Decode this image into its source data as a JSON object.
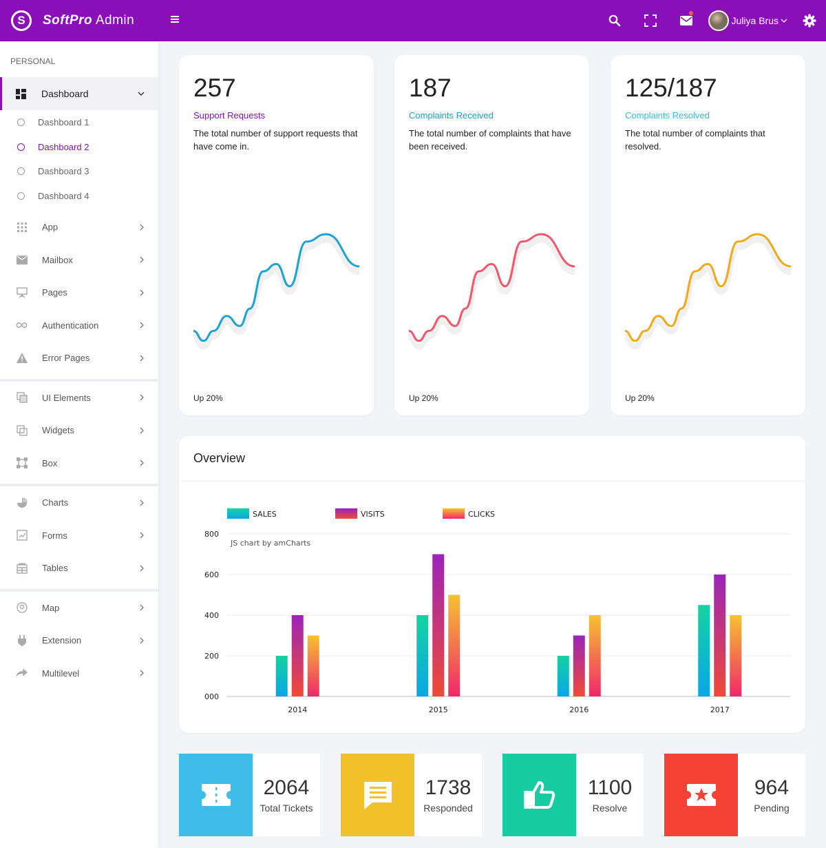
{
  "header": {
    "logo_letter": "S",
    "brand_bold": "SoftPro",
    "brand_rest": "Admin",
    "user_name": "Juliya Brus"
  },
  "sidebar": {
    "section_label": "PERSONAL",
    "active_item": "Dashboard",
    "sub_items": [
      "Dashboard 1",
      "Dashboard 2",
      "Dashboard 3",
      "Dashboard 4"
    ],
    "active_sub": "Dashboard 2",
    "group1": [
      "App",
      "Mailbox",
      "Pages",
      "Authentication",
      "Error Pages"
    ],
    "group2": [
      "UI Elements",
      "Widgets",
      "Box"
    ],
    "group3": [
      "Charts",
      "Forms",
      "Tables"
    ],
    "group4": [
      "Map",
      "Extension",
      "Multilevel"
    ]
  },
  "stats": [
    {
      "value": "257",
      "label": "Support Requests",
      "desc": "The total number of support requests that have come in.",
      "foot": "Up 20%",
      "color": "#1aa3d4",
      "label_color": "#8a0fb8"
    },
    {
      "value": "187",
      "label": "Complaints Received",
      "desc": "The total number of complaints that have been received.",
      "foot": "Up 20%",
      "color": "#f4556a",
      "label_color": "#17a2c7"
    },
    {
      "value": "125/187",
      "label": "Complaints Resolved",
      "desc": "The total number of complaints that resolved.",
      "foot": "Up 20%",
      "color": "#f5a815",
      "label_color": "#2ec2d6"
    }
  ],
  "overview": {
    "title": "Overview",
    "credit": "JS chart by amCharts"
  },
  "chart_data": {
    "type": "bar",
    "categories": [
      "2014",
      "2015",
      "2016",
      "2017"
    ],
    "series": [
      {
        "name": "SALES",
        "values": [
          200,
          400,
          200,
          450
        ],
        "color_top": "#14d2a0",
        "color_bottom": "#0aa6e8"
      },
      {
        "name": "VISITS",
        "values": [
          400,
          700,
          300,
          600
        ],
        "color_top": "#9b24b8",
        "color_bottom": "#f04a36"
      },
      {
        "name": "CLICKS",
        "values": [
          300,
          500,
          400,
          400
        ],
        "color_top": "#f6c230",
        "color_bottom": "#f0286a"
      }
    ],
    "yticks": [
      "000",
      "200",
      "400",
      "600",
      "800"
    ],
    "ylim": [
      0,
      800
    ],
    "grid": true,
    "legend": "top-left"
  },
  "tiles": [
    {
      "value": "2064",
      "label": "Total Tickets",
      "color": "#3ebde8",
      "icon": "ticket-icon"
    },
    {
      "value": "1738",
      "label": "Responded",
      "color": "#f2c12a",
      "icon": "message-icon"
    },
    {
      "value": "1100",
      "label": "Resolve",
      "color": "#16cca0",
      "icon": "thumbs-up-icon"
    },
    {
      "value": "964",
      "label": "Pending",
      "color": "#f44336",
      "icon": "star-ticket-icon"
    }
  ]
}
